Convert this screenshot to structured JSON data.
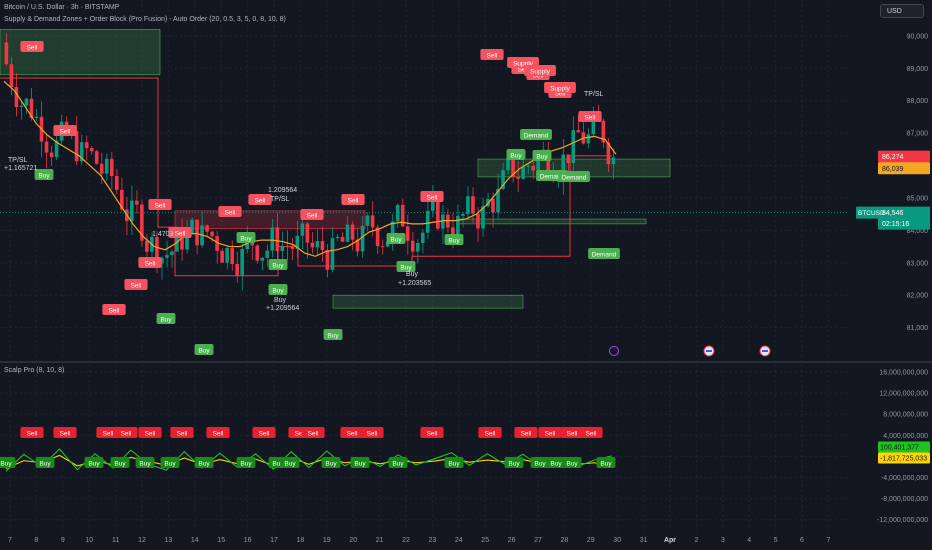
{
  "header": {
    "symbol_line": "Bitcoin / U.S. Dollar · 3h · BITSTAMP",
    "indicator_line": "Supply & Demand Zones + Order Block (Pro Fusion) - Auto Order (20, 0.5, 3, 5, 0, 8, 10, 8)",
    "currency_button": "USD",
    "sub_indicator_line": "Scalp Pro (8, 10, 8)"
  },
  "chart_data": [
    {
      "type": "candlestick",
      "pane": "price",
      "symbol": "BTCUSD",
      "ylim": [
        80000,
        90800
      ],
      "y_ticks": [
        81000,
        82000,
        83000,
        84000,
        85000,
        86000,
        87000,
        88000,
        89000,
        90000
      ],
      "y_tick_labels": [
        "81,000",
        "82,000",
        "83,000",
        "84,000",
        "85,000",
        "86,000",
        "87,000",
        "88,000",
        "89,000",
        "90,000"
      ],
      "x_tick_labels": [
        "7",
        "8",
        "9",
        "10",
        "11",
        "12",
        "13",
        "14",
        "15",
        "16",
        "17",
        "18",
        "19",
        "20",
        "21",
        "22",
        "23",
        "24",
        "25",
        "26",
        "27",
        "28",
        "29",
        "30",
        "31",
        "Apr",
        "2",
        "3",
        "4",
        "5",
        "6",
        "7"
      ],
      "last_price_label": "84,546",
      "countdown_label": "02:15:16",
      "price_tags": [
        {
          "label": "86,274",
          "color": "#f23645"
        },
        {
          "label": "86,039",
          "color": "#f5a623"
        }
      ],
      "moving_average": {
        "color": "#f5a623",
        "values": [
          88600,
          88300,
          87800,
          87300,
          86950,
          86700,
          86500,
          86300,
          86000,
          85700,
          85200,
          84700,
          84200,
          83800,
          83500,
          83400,
          83600,
          83900,
          83900,
          83800,
          83600,
          83500,
          83500,
          83650,
          83700,
          83700,
          83650,
          83550,
          83300,
          83200,
          83350,
          83400,
          83500,
          83700,
          83950,
          84050,
          84200,
          84250,
          84200,
          84200,
          84250,
          84300,
          84300,
          84350,
          84500,
          84800,
          85200,
          85600,
          85900,
          86100,
          86300,
          86450,
          86550,
          86700,
          86850,
          86900,
          86800,
          86350
        ]
      },
      "annotations": [
        {
          "text": "Sell",
          "kind": "sell"
        },
        {
          "text": "Buy",
          "kind": "buy"
        },
        {
          "text": "Supply",
          "kind": "sell"
        },
        {
          "text": "Demand",
          "kind": "demand"
        },
        {
          "text": "TP/SL",
          "kind": "label"
        },
        {
          "text": "+1.165721",
          "kind": "label"
        },
        {
          "text": "1.209564",
          "kind": "label"
        },
        {
          "text": "+1.209564",
          "kind": "label"
        },
        {
          "text": "+1.203565",
          "kind": "label"
        },
        {
          "text": "1.4703",
          "kind": "label"
        }
      ]
    },
    {
      "type": "line",
      "pane": "oscillator",
      "title": "Scalp Pro (8, 10, 8)",
      "ylim": [
        -13000000000,
        16000000000
      ],
      "y_ticks": [
        16000000000,
        12000000000,
        8000000000,
        4000000000,
        0,
        -4000000000,
        -8000000000,
        -12000000000
      ],
      "y_tick_labels": [
        "16,000,000,000",
        "12,000,000,000",
        "8,000,000,000",
        "4,000,000,000",
        "0",
        "-4,000,000,000",
        "-8,000,000,000",
        "-12,000,000,000"
      ],
      "series": [
        {
          "color": "#ffd400",
          "values": [
            -2300000000,
            -800000000,
            -1200000000,
            200000000,
            -1800000000,
            -800000000,
            -1600000000,
            -200000000,
            -900000000,
            -1700000000,
            -300000000,
            -1500000000,
            -600000000,
            -1400000000,
            -500000000,
            -1700000000,
            -200000000,
            -1500000000,
            -300000000,
            -1200000000,
            -800000000,
            -1400000000,
            -700000000,
            -1200000000,
            -900000000,
            -400000000,
            -1100000000,
            -700000000,
            -1000000000,
            -600000000,
            -1300000000,
            -1100000000,
            -1500000000,
            -1200000000,
            -1817725033
          ]
        },
        {
          "color": "#1fc31f",
          "values": [
            -2800000000,
            400000000,
            -1900000000,
            1400000000,
            -2500000000,
            500000000,
            -2200000000,
            1200000000,
            -1500000000,
            -2600000000,
            900000000,
            -2200000000,
            600000000,
            -2100000000,
            500000000,
            -2400000000,
            900000000,
            -2100000000,
            1000000000,
            -1800000000,
            -200000000,
            -1900000000,
            300000000,
            -1600000000,
            -500000000,
            700000000,
            -1700000000,
            500000000,
            -1500000000,
            400000000,
            -1900000000,
            -900000000,
            -2000000000,
            -700000000,
            100401377
          ]
        }
      ],
      "value_tags": [
        {
          "label": "100,401,377",
          "color": "#1fc31f"
        },
        {
          "label": "-1,817,725,033",
          "color": "#ffd400"
        }
      ],
      "signals": {
        "sell_label": "Sell",
        "buy_label": "Buy"
      }
    }
  ]
}
